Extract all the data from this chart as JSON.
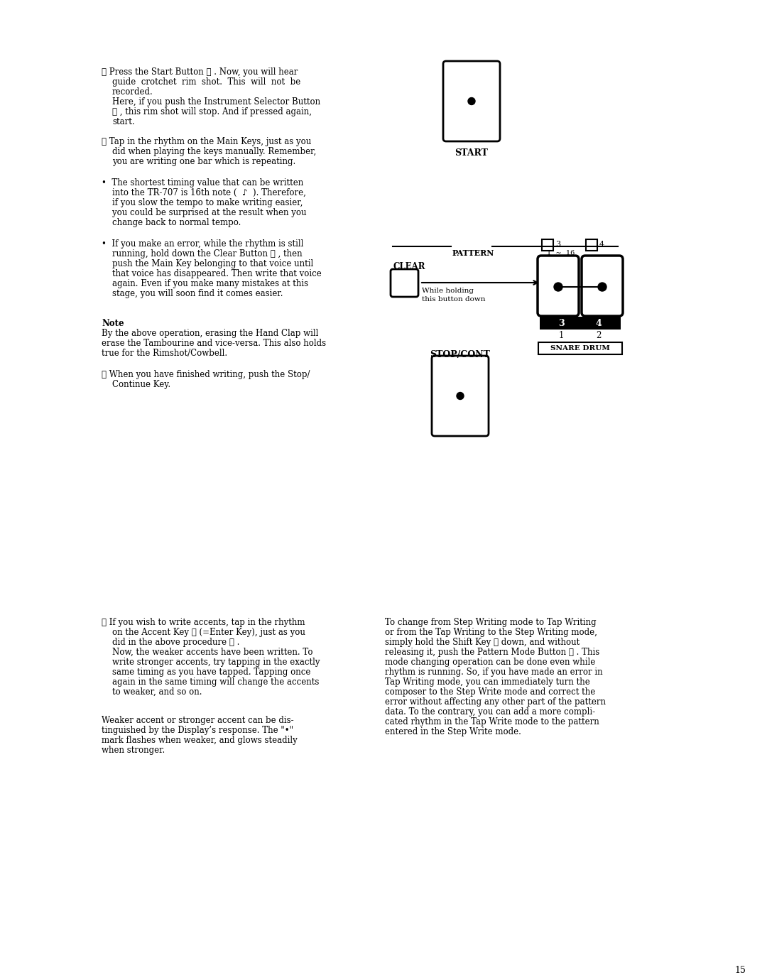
{
  "bg_color": "#ffffff",
  "page_number": "15",
  "start_label": "START",
  "stop_label": "STOP/CONT",
  "pattern_label": "PATTERN",
  "clear_label": "CLEAR",
  "snare_drum_label": "SNARE DRUM",
  "while_holding_line1": "While holding",
  "while_holding_line2": "this button down",
  "text_color": "#000000",
  "font_size_body": 8.5,
  "font_size_small": 7.5,
  "section4_line0": "⑤ Press the Start Button Ⓐ . Now, you will hear",
  "section4_lines": [
    "guide  crotchet  rim  shot.  This  will  not  be",
    "recorded.",
    "Here, if you push the Instrument Selector Button",
    "Ⓐ , this rim shot will stop. And if pressed again,",
    "start."
  ],
  "section5_line0": "⑥ Tap in the rhythm on the Main Keys, just as you",
  "section5_lines": [
    "did when playing the keys manually. Remember,",
    "you are writing one bar which is repeating."
  ],
  "bullet1_lines": [
    "•  The shortest timing value that can be written",
    "    into the TR-707 is 16th note (  ♪  ). Therefore,",
    "    if you slow the tempo to make writing easier,",
    "    you could be surprised at the result when you",
    "    change back to normal tempo."
  ],
  "bullet2_lines": [
    "•  If you make an error, while the rhythm is still",
    "    running, hold down the Clear Button Ⓐ , then",
    "    push the Main Key belonging to that voice until",
    "    that voice has disappeared. Then write that voice",
    "    again. Even if you make many mistakes at this",
    "    stage, you will soon find it comes easier."
  ],
  "note_title": "Note",
  "note_lines": [
    "By the above operation, erasing the Hand Clap will",
    "erase the Tambourine and vice-versa. This also holds",
    "true for the Rimshot/Cowbell."
  ],
  "section6_line0": "⑦ When you have finished writing, push the Stop/",
  "section6_lines": [
    "Continue Key."
  ],
  "section7_line0": "⑧ If you wish to write accents, tap in the rhythm",
  "section7_lines": [
    "on the Accent Key Ⓐ (=Enter Key), just as you",
    "did in the above procedure ⑥ .",
    "Now, the weaker accents have been written. To",
    "write stronger accents, try tapping in the exactly",
    "same timing as you have tapped. Tapping once",
    "again in the same timing will change the accents",
    "to weaker, and so on."
  ],
  "weaker_accent_lines": [
    "Weaker accent or stronger accent can be dis-",
    "tinguished by the Display’s response. The \"•\"",
    "mark flashes when weaker, and glows steadily",
    "when stronger."
  ],
  "right_col_lines": [
    "To change from Step Writing mode to Tap Writing",
    "or from the Tap Writing to the Step Writing mode,",
    "simply hold the Shift Key Ⓐ down, and without",
    "releasing it, push the Pattern Mode Button Ⓐ . This",
    "mode changing operation can be done even while",
    "rhythm is running. So, if you have made an error in",
    "Tap Writing mode, you can immediately turn the",
    "composer to the Step Write mode and correct the",
    "error without affecting any other part of the pattern",
    "data. To the contrary, you can add a more compli-",
    "cated rhythm in the Tap Write mode to the pattern",
    "entered in the Step Write mode."
  ]
}
